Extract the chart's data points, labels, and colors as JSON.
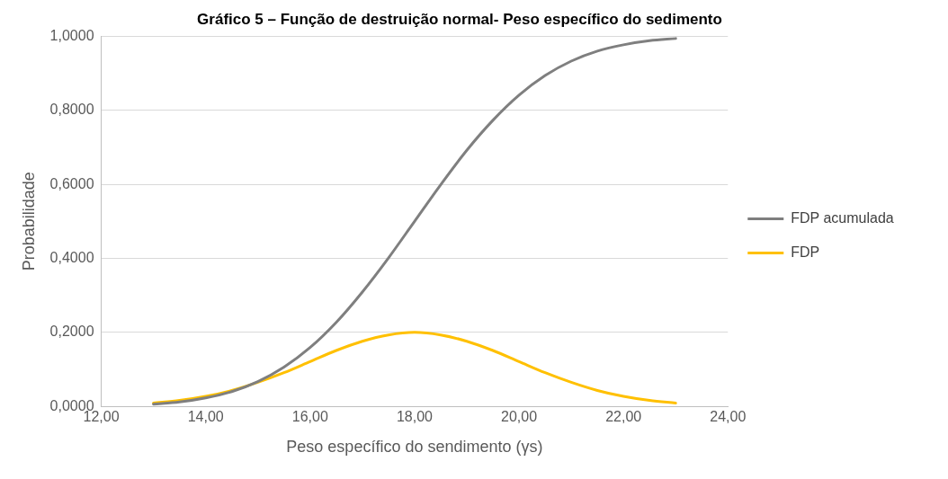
{
  "chart_data": {
    "type": "line",
    "title": "Gráfico 5 – Função de destruição normal- Peso específico do sedimento",
    "xlabel": "Peso específico do sendimento (γs)",
    "ylabel": "Probabilidade",
    "x": [
      13,
      13.5,
      14,
      14.5,
      15,
      15.5,
      16,
      16.5,
      17,
      17.5,
      18,
      18.5,
      19,
      19.5,
      20,
      20.5,
      21,
      21.5,
      22,
      22.5,
      23
    ],
    "series": [
      {
        "name": "FDP acumulada",
        "color": "#7f7f7f",
        "values": [
          0.006,
          0.012,
          0.023,
          0.04,
          0.067,
          0.106,
          0.159,
          0.227,
          0.309,
          0.401,
          0.5,
          0.599,
          0.692,
          0.773,
          0.841,
          0.894,
          0.933,
          0.96,
          0.977,
          0.988,
          0.994
        ]
      },
      {
        "name": "FDP",
        "color": "#ffc000",
        "values": [
          0.009,
          0.016,
          0.027,
          0.043,
          0.065,
          0.091,
          0.121,
          0.151,
          0.176,
          0.193,
          0.2,
          0.193,
          0.176,
          0.151,
          0.121,
          0.091,
          0.065,
          0.043,
          0.027,
          0.016,
          0.009
        ]
      }
    ],
    "xlim": [
      12,
      24
    ],
    "xticks": [
      {
        "value": 12,
        "label": "12,00"
      },
      {
        "value": 14,
        "label": "14,00"
      },
      {
        "value": 16,
        "label": "16,00"
      },
      {
        "value": 18,
        "label": "18,00"
      },
      {
        "value": 20,
        "label": "20,00"
      },
      {
        "value": 22,
        "label": "22,00"
      },
      {
        "value": 24,
        "label": "24,00"
      }
    ],
    "ylim": [
      0,
      1
    ],
    "yticks": [
      {
        "value": 0,
        "label": "0,0000"
      },
      {
        "value": 0.2,
        "label": "0,2000"
      },
      {
        "value": 0.4,
        "label": "0,4000"
      },
      {
        "value": 0.6,
        "label": "0,6000"
      },
      {
        "value": 0.8,
        "label": "0,8000"
      },
      {
        "value": 1,
        "label": "1,0000"
      }
    ],
    "grid": "y",
    "legend": "right",
    "marker": "none",
    "line_style": "solid"
  }
}
